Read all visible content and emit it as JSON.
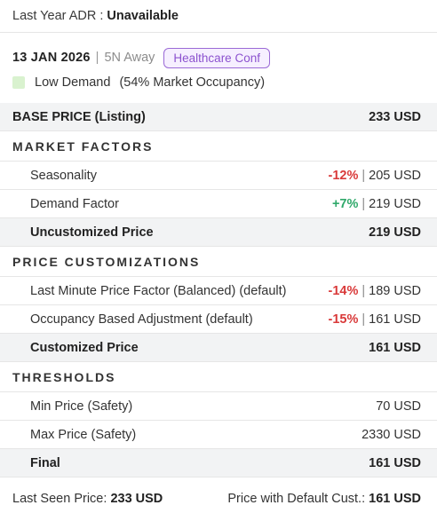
{
  "header": {
    "last_year_adr_label": "Last Year ADR :",
    "last_year_adr_value": "Unavailable"
  },
  "date_info": {
    "date": "13 JAN 2026",
    "separator": "|",
    "away": "5N Away",
    "event_badge": "Healthcare Conf"
  },
  "demand": {
    "level": "Low Demand",
    "occupancy": "(54% Market Occupancy)",
    "swatch_color": "#d9f2cf"
  },
  "base_price": {
    "label": "BASE PRICE (Listing)",
    "value": "233 USD"
  },
  "market_factors": {
    "title": "MARKET FACTORS",
    "rows": [
      {
        "label": "Seasonality",
        "pct": "-12%",
        "price": "205 USD"
      },
      {
        "label": "Demand Factor",
        "pct": "+7%",
        "price": "219 USD"
      }
    ],
    "total": {
      "label": "Uncustomized Price",
      "value": "219 USD"
    }
  },
  "price_customizations": {
    "title": "PRICE CUSTOMIZATIONS",
    "rows": [
      {
        "label": "Last Minute Price Factor (Balanced) (default)",
        "pct": "-14%",
        "price": "189 USD"
      },
      {
        "label": "Occupancy Based Adjustment (default)",
        "pct": "-15%",
        "price": "161 USD"
      }
    ],
    "total": {
      "label": "Customized Price",
      "value": "161 USD"
    }
  },
  "thresholds": {
    "title": "THRESHOLDS",
    "rows": [
      {
        "label": "Min Price (Safety)",
        "value": "70 USD"
      },
      {
        "label": "Max Price (Safety)",
        "value": "2330 USD"
      }
    ],
    "total": {
      "label": "Final",
      "value": "161 USD"
    }
  },
  "footer": {
    "last_seen_label": "Last Seen Price:",
    "last_seen_value": "233 USD",
    "default_cust_label": "Price with Default Cust.:",
    "default_cust_value": "161 USD"
  },
  "colors": {
    "negative": "#d93a3a",
    "positive": "#2fa86a",
    "badge": "#8c52cf"
  }
}
